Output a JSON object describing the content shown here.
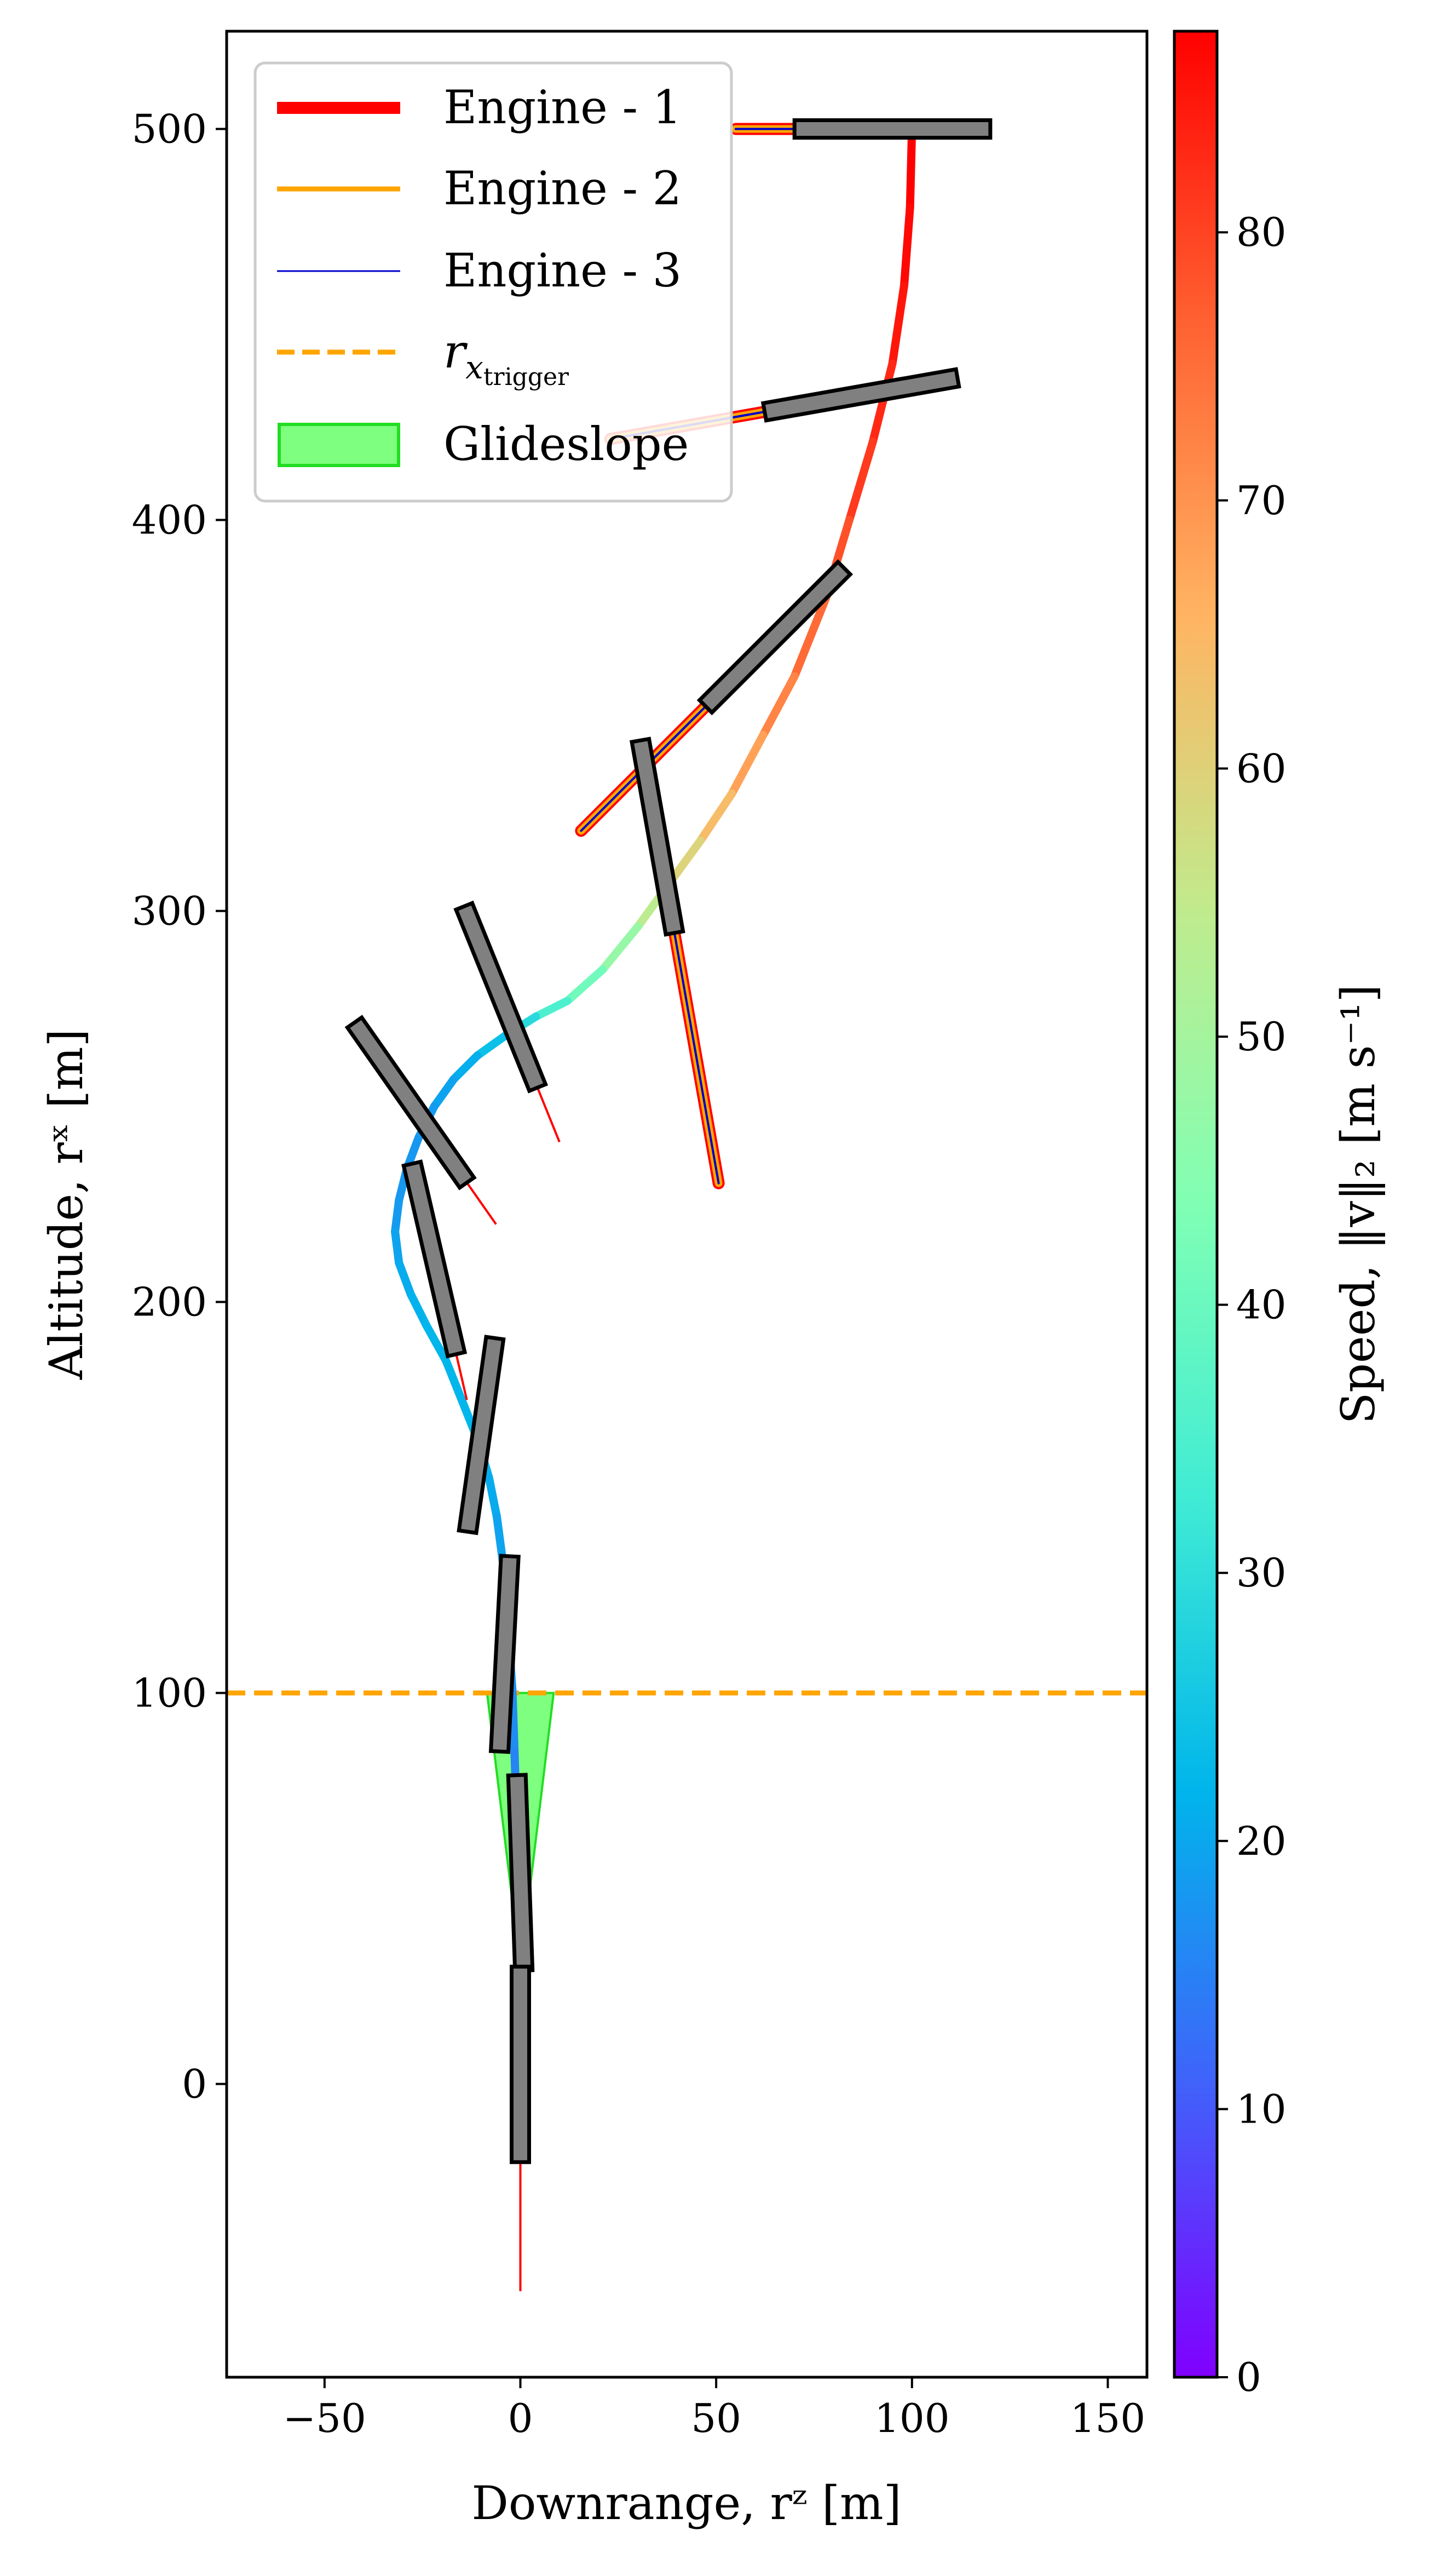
{
  "chart_data": {
    "type": "line",
    "xlabel": "Downrange, rᶻ [m]",
    "ylabel": "Altitude, rˣ [m]",
    "xlim": [
      -75,
      160
    ],
    "ylim": [
      -75,
      525
    ],
    "x_ticks": [
      -50,
      0,
      50,
      100,
      150
    ],
    "y_ticks": [
      0,
      100,
      200,
      300,
      400,
      500
    ],
    "x_tick_labels": [
      "−50",
      "0",
      "50",
      "100",
      "150"
    ],
    "y_tick_labels": [
      "0",
      "100",
      "200",
      "300",
      "400",
      "500"
    ],
    "grid": false,
    "legend_position": "top-left",
    "legend": [
      {
        "label": "Engine - 1",
        "color": "#ff0000",
        "style": "solid-thick"
      },
      {
        "label": "Engine - 2",
        "color": "#ffa500",
        "style": "solid"
      },
      {
        "label": "Engine - 3",
        "color": "#0000cc",
        "style": "solid-thin"
      },
      {
        "label": "r_x_trigger",
        "label_main": "r",
        "label_sub": "x",
        "label_subsub": "trigger",
        "color": "#ffa500",
        "style": "dashed"
      },
      {
        "label": "Glideslope",
        "color": "#7fff7f",
        "style": "patch"
      }
    ],
    "trajectory": {
      "x": [
        100,
        99.5,
        98,
        95,
        90,
        84,
        78,
        70,
        62,
        54,
        46,
        38,
        30,
        21,
        12,
        4,
        -4,
        -11,
        -17,
        -22,
        -26,
        -29,
        -31,
        -32,
        -31,
        -28,
        -24,
        -19,
        -15,
        -11,
        -8,
        -6,
        -4,
        -3,
        -2,
        -1.5,
        -1,
        -0.5,
        0
      ],
      "y": [
        500,
        480,
        460,
        440,
        420,
        400,
        380,
        360,
        345,
        330,
        318,
        307,
        296,
        285,
        277,
        273,
        268,
        263,
        257,
        250,
        242,
        234,
        226,
        218,
        210,
        202,
        194,
        185,
        175,
        165,
        155,
        145,
        130,
        115,
        100,
        85,
        70,
        55,
        40
      ],
      "speed": [
        88,
        87,
        86,
        84,
        82,
        80,
        77,
        74,
        70,
        66,
        62,
        57,
        51,
        44,
        38,
        32,
        26,
        22,
        20,
        19,
        18,
        18,
        18,
        19,
        20,
        21,
        22,
        22,
        22,
        22,
        21,
        20,
        19,
        18,
        17,
        16,
        15,
        14,
        13
      ]
    },
    "threshold": {
      "y": 100
    },
    "glideslope": [
      [
        -8.5,
        100
      ],
      [
        8.5,
        100
      ],
      [
        0,
        30
      ]
    ],
    "vehicles": [
      {
        "x": 95,
        "y": 500,
        "angle": 90,
        "plume": 15,
        "engine": 3
      },
      {
        "x": 87,
        "y": 432,
        "angle": 80,
        "plume": 40,
        "engine": 3
      },
      {
        "x": 65,
        "y": 370,
        "angle": 45,
        "plume": 45,
        "engine": 3
      },
      {
        "x": 35,
        "y": 319,
        "angle": -10,
        "plume": 65,
        "engine": 3
      },
      {
        "x": -5,
        "y": 278,
        "angle": -22,
        "plume": 15,
        "engine": 1
      },
      {
        "x": -28,
        "y": 251,
        "angle": -35,
        "plume": 13,
        "engine": 1
      },
      {
        "x": -22,
        "y": 211,
        "angle": -13,
        "plume": 12,
        "engine": 1
      },
      {
        "x": -10,
        "y": 166,
        "angle": 8,
        "plume": 0,
        "engine": 1
      },
      {
        "x": -4,
        "y": 110,
        "angle": 3,
        "plume": 0,
        "engine": 1
      },
      {
        "x": 0,
        "y": 54,
        "angle": -2,
        "plume": 0,
        "engine": 1
      },
      {
        "x": 0,
        "y": 5,
        "angle": 0,
        "plume": 33,
        "engine": 1
      }
    ],
    "colorbar": {
      "label": "Speed, ‖v‖₂ [m s⁻¹]",
      "min": 0,
      "max": 87.5,
      "ticks": [
        0,
        10,
        20,
        30,
        40,
        50,
        60,
        70,
        80
      ],
      "tick_labels": [
        "0",
        "10",
        "20",
        "30",
        "40",
        "50",
        "60",
        "70",
        "80"
      ],
      "colormap": "rainbow"
    }
  }
}
